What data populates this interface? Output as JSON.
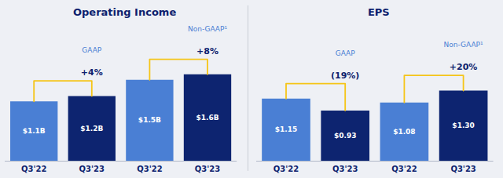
{
  "chart_data": [
    {
      "type": "bar",
      "title": "Operating Income",
      "categories": [
        "Q3'22",
        "Q3'23",
        "Q3'22",
        "Q3'23"
      ],
      "values": [
        1.1,
        1.2,
        1.5,
        1.6
      ],
      "value_labels": [
        "$1.1B",
        "$1.2B",
        "$1.5B",
        "$1.6B"
      ],
      "colors": [
        "#4a7fd4",
        "#0d2470",
        "#4a7fd4",
        "#0d2470"
      ],
      "data_labels": true,
      "annotations": [
        {
          "label": "GAAP",
          "change": "+4%"
        },
        {
          "label": "Non-GAAP¹",
          "change": "+8%"
        }
      ],
      "ylim": [
        0,
        2.6
      ],
      "grid": false,
      "tick_labels": "x"
    },
    {
      "type": "bar",
      "title": "EPS",
      "categories": [
        "Q3'22",
        "Q3'23",
        "Q3'22",
        "Q3'23"
      ],
      "values": [
        1.15,
        0.93,
        1.08,
        1.3
      ],
      "value_labels": [
        "$1.15",
        "$0.93",
        "$1.08",
        "$1.30"
      ],
      "colors": [
        "#4a7fd4",
        "#0d2470",
        "#4a7fd4",
        "#0d2470"
      ],
      "data_labels": true,
      "annotations": [
        {
          "label": "GAAP",
          "change": "(19%)"
        },
        {
          "label": "Non-GAAP¹",
          "change": "+20%"
        }
      ],
      "ylim": [
        0,
        2.6
      ],
      "grid": false,
      "tick_labels": "x"
    }
  ]
}
